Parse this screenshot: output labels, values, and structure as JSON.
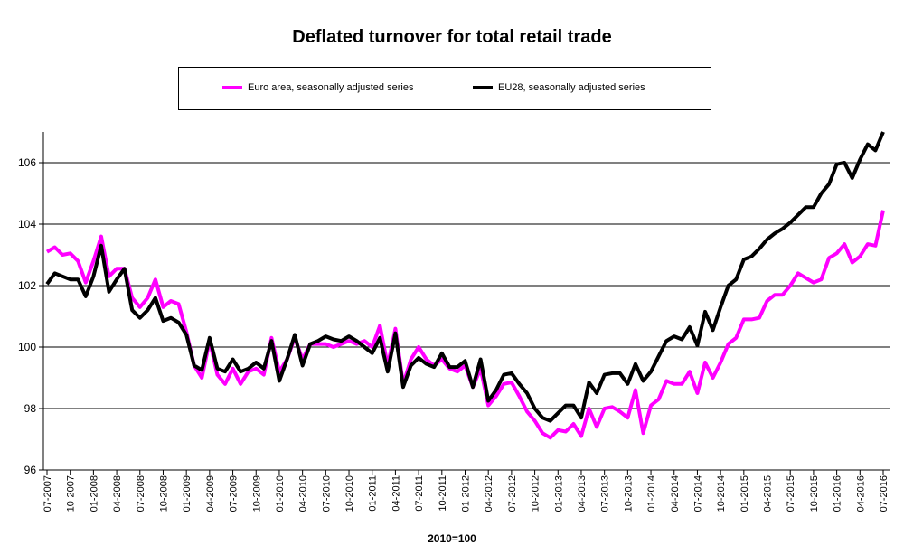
{
  "chart_data": {
    "type": "line",
    "title": "Deflated turnover for total retail trade",
    "xlabel": "2010=100",
    "ylabel": "",
    "ylim": [
      96,
      107
    ],
    "yticks": [
      96,
      98,
      100,
      102,
      104,
      106
    ],
    "grid": true,
    "legend_position": "top",
    "start": "07-2007",
    "end": "07-2016",
    "frequency": "monthly",
    "xtick_labels": [
      "07-2007",
      "10-2007",
      "01-2008",
      "04-2008",
      "07-2008",
      "10-2008",
      "01-2009",
      "04-2009",
      "07-2009",
      "10-2009",
      "01-2010",
      "04-2010",
      "07-2010",
      "10-2010",
      "01-2011",
      "04-2011",
      "07-2011",
      "10-2011",
      "01-2012",
      "04-2012",
      "07-2012",
      "10-2012",
      "01-2013",
      "04-2013",
      "07-2013",
      "10-2013",
      "01-2014",
      "04-2014",
      "07-2014",
      "10-2014",
      "01-2015",
      "04-2015",
      "07-2015",
      "10-2015",
      "01-2016",
      "04-2016",
      "07-2016"
    ],
    "series": [
      {
        "name": "Euro area, seasonally adjusted series",
        "color": "#ff00ff",
        "values": [
          103.1,
          103.25,
          103.0,
          103.05,
          102.8,
          102.1,
          102.8,
          103.6,
          102.3,
          102.55,
          102.55,
          101.6,
          101.3,
          101.6,
          102.2,
          101.3,
          101.5,
          101.4,
          100.5,
          99.4,
          99.0,
          100.2,
          99.1,
          98.8,
          99.3,
          98.8,
          99.2,
          99.3,
          99.1,
          100.3,
          99.2,
          99.6,
          100.3,
          99.6,
          100.1,
          100.1,
          100.1,
          100.0,
          100.1,
          100.2,
          100.1,
          100.2,
          100.0,
          100.7,
          99.4,
          100.6,
          98.8,
          99.6,
          100.0,
          99.6,
          99.4,
          99.6,
          99.3,
          99.2,
          99.4,
          98.7,
          99.3,
          98.1,
          98.4,
          98.8,
          98.85,
          98.4,
          97.9,
          97.6,
          97.2,
          97.05,
          97.3,
          97.25,
          97.5,
          97.1,
          98.0,
          97.4,
          98.0,
          98.05,
          97.9,
          97.7,
          98.6,
          97.2,
          98.1,
          98.3,
          98.9,
          98.8,
          98.8,
          99.2,
          98.5,
          99.5,
          99.0,
          99.5,
          100.1,
          100.3,
          100.9,
          100.9,
          100.95,
          101.5,
          101.7,
          101.7,
          102.0,
          102.4,
          102.25,
          102.1,
          102.2,
          102.9,
          103.05,
          103.35,
          102.75,
          102.95,
          103.35,
          103.3,
          104.45
        ]
      },
      {
        "name": "EU28, seasonally adjusted series",
        "color": "#000000",
        "values": [
          102.05,
          102.4,
          102.3,
          102.2,
          102.2,
          101.65,
          102.3,
          103.3,
          101.8,
          102.2,
          102.55,
          101.2,
          100.95,
          101.2,
          101.6,
          100.85,
          100.95,
          100.8,
          100.4,
          99.4,
          99.25,
          100.3,
          99.3,
          99.2,
          99.6,
          99.2,
          99.3,
          99.5,
          99.3,
          100.2,
          98.9,
          99.6,
          100.4,
          99.4,
          100.1,
          100.2,
          100.35,
          100.25,
          100.2,
          100.35,
          100.2,
          100.0,
          99.8,
          100.3,
          99.2,
          100.45,
          98.7,
          99.4,
          99.65,
          99.45,
          99.35,
          99.8,
          99.35,
          99.35,
          99.55,
          98.7,
          99.6,
          98.25,
          98.6,
          99.1,
          99.15,
          98.8,
          98.5,
          98.0,
          97.7,
          97.6,
          97.85,
          98.1,
          98.1,
          97.7,
          98.85,
          98.5,
          99.1,
          99.15,
          99.15,
          98.8,
          99.45,
          98.9,
          99.2,
          99.7,
          100.2,
          100.35,
          100.25,
          100.65,
          100.05,
          101.15,
          100.55,
          101.3,
          102.0,
          102.2,
          102.85,
          102.95,
          103.2,
          103.5,
          103.7,
          103.85,
          104.05,
          104.3,
          104.55,
          104.55,
          105.0,
          105.3,
          105.95,
          106.0,
          105.5,
          106.1,
          106.6,
          106.4,
          107.1
        ]
      }
    ]
  }
}
